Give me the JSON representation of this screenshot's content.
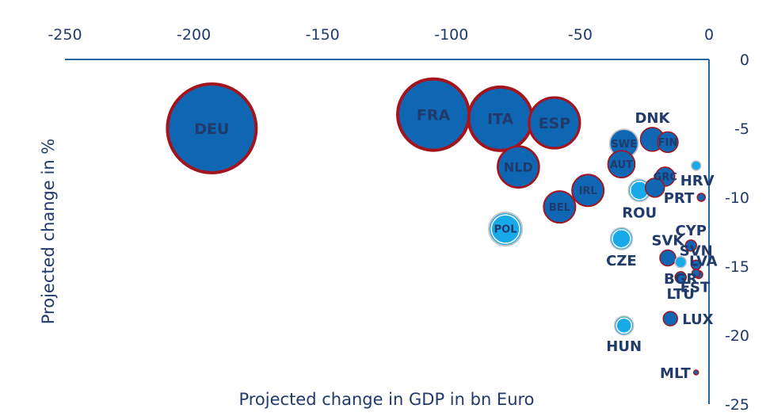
{
  "chart_data": {
    "type": "scatter",
    "xlabel": "Projected change in GDP in bn Euro",
    "ylabel": "Projected change in %",
    "xlim": [
      -250,
      0
    ],
    "ylim": [
      -25,
      0
    ],
    "x_ticks": [
      "-250",
      "-200",
      "-150",
      "-100",
      "-50",
      "0"
    ],
    "y_ticks": [
      "0",
      "-5",
      "-10",
      "-15",
      "-20",
      "-25"
    ],
    "colors": {
      "fill_dark": "#0f67b4",
      "fill_light": "#17a9e8",
      "ring_red": "#a3141e",
      "ring_grey": "#c4c4c4",
      "axis": "#1f6aa5",
      "text": "#1f3a6b"
    },
    "points": [
      {
        "label": "DEU",
        "x": -193,
        "y": -5.0,
        "size": 56,
        "style": "dark",
        "label_pos": "center"
      },
      {
        "label": "FRA",
        "x": -107,
        "y": -4.0,
        "size": 45,
        "style": "dark",
        "label_pos": "center"
      },
      {
        "label": "ITA",
        "x": -81,
        "y": -4.3,
        "size": 40,
        "style": "dark",
        "label_pos": "center"
      },
      {
        "label": "ESP",
        "x": -60,
        "y": -4.6,
        "size": 32,
        "style": "dark",
        "label_pos": "center"
      },
      {
        "label": "NLD",
        "x": -74,
        "y": -7.8,
        "size": 26,
        "style": "dark",
        "label_pos": "center"
      },
      {
        "label": "IRL",
        "x": -47,
        "y": -9.5,
        "size": 20,
        "style": "dark",
        "label_pos": "center"
      },
      {
        "label": "BEL",
        "x": -58,
        "y": -10.7,
        "size": 20,
        "style": "dark",
        "label_pos": "center"
      },
      {
        "label": "POL",
        "x": -79,
        "y": -12.3,
        "size": 21,
        "style": "light",
        "label_pos": "center"
      },
      {
        "label": "SWE",
        "x": -33,
        "y": -6.1,
        "size": 18,
        "style": "light_dark",
        "label_pos": "center"
      },
      {
        "label": "AUT",
        "x": -34,
        "y": -7.6,
        "size": 17,
        "style": "dark",
        "label_pos": "center"
      },
      {
        "label": "DNK",
        "x": -22,
        "y": -5.8,
        "size": 15,
        "style": "dark",
        "label_pos": "above"
      },
      {
        "label": "FIN",
        "x": -16,
        "y": -6.0,
        "size": 13,
        "style": "dark",
        "label_pos": "center"
      },
      {
        "label": "GRC",
        "x": -17,
        "y": -8.5,
        "size": 12,
        "style": "dark",
        "label_pos": "center"
      },
      {
        "label": "ROU",
        "x": -27,
        "y": -9.5,
        "size": 14,
        "style": "light",
        "label_pos": "below"
      },
      {
        "label": "",
        "x": -21,
        "y": -9.3,
        "size": 12,
        "style": "dark",
        "label_pos": "none"
      },
      {
        "label": "HRV",
        "x": -5,
        "y": -7.7,
        "size": 6,
        "style": "light",
        "label_pos": "below_right"
      },
      {
        "label": "PRT",
        "x": -3,
        "y": -10.0,
        "size": 5,
        "style": "dark",
        "label_pos": "left"
      },
      {
        "label": "CZE",
        "x": -34,
        "y": -13.0,
        "size": 14,
        "style": "light",
        "label_pos": "below"
      },
      {
        "label": "CYP",
        "x": -7,
        "y": -13.5,
        "size": 7,
        "style": "dark",
        "label_pos": "above"
      },
      {
        "label": "SVN",
        "x": -5,
        "y": -14.9,
        "size": 6,
        "style": "dark",
        "label_pos": "above"
      },
      {
        "label": "SVK",
        "x": -16,
        "y": -14.4,
        "size": 10,
        "style": "dark",
        "label_pos": "above"
      },
      {
        "label": "LVA",
        "x": -4,
        "y": -15.6,
        "size": 5,
        "style": "dark",
        "label_pos": "above_right"
      },
      {
        "label": "BGR",
        "x": -11,
        "y": -14.7,
        "size": 7,
        "style": "light",
        "label_pos": "below"
      },
      {
        "label": "LTU",
        "x": -11,
        "y": -15.8,
        "size": 7,
        "style": "dark",
        "label_pos": "below"
      },
      {
        "label": "EST",
        "x": -5,
        "y": -15.5,
        "size": 5,
        "style": "dark",
        "label_pos": "below_right"
      },
      {
        "label": "LUX",
        "x": -15,
        "y": -18.8,
        "size": 9,
        "style": "dark",
        "label_pos": "right"
      },
      {
        "label": "HUN",
        "x": -33,
        "y": -19.3,
        "size": 12,
        "style": "light",
        "label_pos": "below"
      },
      {
        "label": "MLT",
        "x": -5,
        "y": -22.7,
        "size": 3,
        "style": "dark",
        "label_pos": "left"
      }
    ]
  }
}
